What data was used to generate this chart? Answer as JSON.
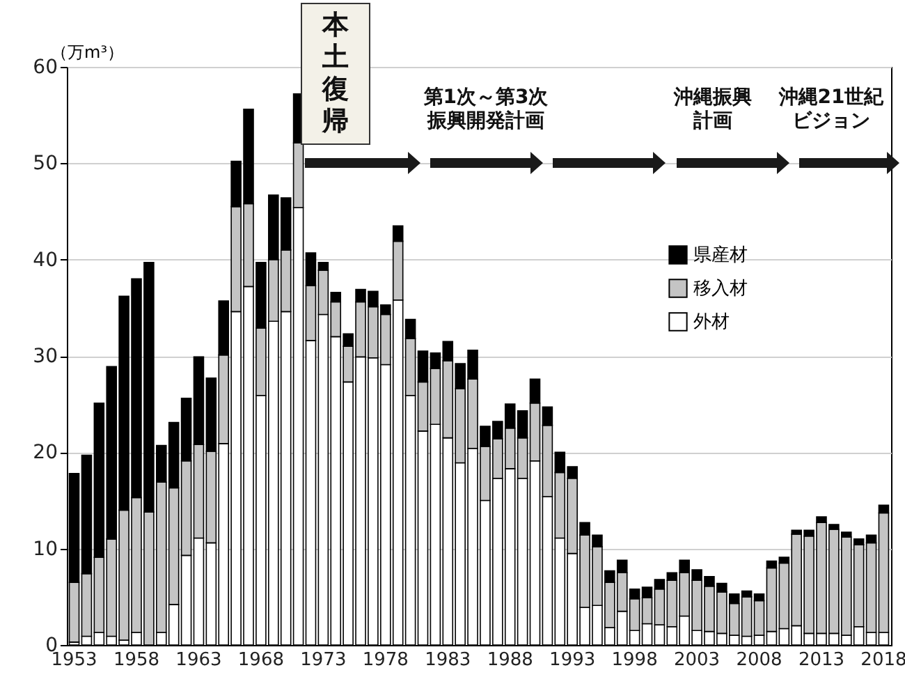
{
  "chart_data": {
    "type": "bar",
    "stacked": true,
    "ylabel": "（万m³）",
    "ylim": [
      0,
      60
    ],
    "yticks": [
      0,
      10,
      20,
      30,
      40,
      50,
      60
    ],
    "grid": "y",
    "legend": "right",
    "categories": [
      "1953",
      null,
      null,
      null,
      null,
      "1958",
      null,
      null,
      null,
      null,
      "1963",
      null,
      null,
      null,
      null,
      "1968",
      null,
      null,
      null,
      null,
      "1973",
      null,
      null,
      null,
      null,
      "1978",
      null,
      null,
      null,
      null,
      "1983",
      null,
      null,
      null,
      null,
      "1988",
      null,
      null,
      null,
      null,
      "1993",
      null,
      null,
      null,
      null,
      "1998",
      null,
      null,
      null,
      null,
      "2003",
      null,
      null,
      null,
      null,
      "2008",
      null,
      null,
      null,
      null,
      "2013",
      null,
      null,
      null,
      null,
      "2018"
    ],
    "annotations": [
      "本土復帰",
      "第1次～第3次振興開発計画",
      "沖縄振興計画",
      "沖縄21世紀ビジョン"
    ],
    "series": [
      {
        "name": "外材",
        "color": "#ffffff",
        "values": [
          0.3,
          0.9,
          1.3,
          0.9,
          0.5,
          1.3,
          null,
          1.3,
          4.2,
          9.3,
          11.1,
          10.6,
          20.9,
          34.6,
          37.2,
          25.9,
          33.6,
          34.6,
          45.4,
          31.6,
          34.3,
          32.0,
          27.3,
          29.9,
          29.8,
          29.1,
          35.8,
          25.9,
          22.2,
          22.9,
          21.5,
          18.9,
          20.4,
          15.0,
          17.3,
          18.3,
          17.3,
          19.1,
          15.4,
          11.1,
          9.5,
          3.9,
          4.1,
          1.8,
          3.5,
          1.5,
          2.2,
          2.1,
          1.9,
          3.0,
          1.5,
          1.4,
          1.2,
          1.0,
          0.9,
          1.0,
          1.4,
          1.7,
          2.0,
          1.2,
          1.2,
          1.2,
          1.0,
          1.9,
          1.3,
          1.3
        ]
      },
      {
        "name": "移入材",
        "color": "#c4c4c4",
        "values": [
          6.2,
          6.5,
          7.8,
          10.1,
          13.5,
          14.0,
          13.8,
          15.6,
          12.1,
          9.8,
          9.7,
          9.5,
          9.2,
          10.9,
          8.6,
          7.0,
          6.4,
          6.4,
          6.7,
          5.7,
          4.6,
          3.6,
          3.7,
          5.7,
          5.3,
          5.2,
          6.1,
          5.9,
          5.1,
          5.8,
          8.0,
          7.7,
          7.2,
          5.6,
          4.1,
          4.2,
          4.2,
          6.0,
          7.4,
          6.8,
          7.8,
          7.5,
          6.1,
          4.7,
          4.0,
          3.3,
          2.7,
          3.7,
          4.8,
          4.5,
          5.2,
          4.7,
          4.3,
          3.3,
          4.1,
          3.6,
          6.6,
          6.8,
          9.5,
          10.1,
          11.5,
          10.8,
          10.2,
          8.5,
          9.3,
          12.4
        ]
      },
      {
        "name": "県産材",
        "color": "#000000",
        "values": [
          11.3,
          12.3,
          16.0,
          17.9,
          22.2,
          22.7,
          25.9,
          3.8,
          6.8,
          6.5,
          9.1,
          7.6,
          5.6,
          4.7,
          9.8,
          6.8,
          6.7,
          5.4,
          5.1,
          3.4,
          0.8,
          1.0,
          1.3,
          1.3,
          1.6,
          1.0,
          1.6,
          2.0,
          3.2,
          1.6,
          2.0,
          2.6,
          3.0,
          2.1,
          1.8,
          2.5,
          2.8,
          2.5,
          1.9,
          2.1,
          1.2,
          1.3,
          1.2,
          1.2,
          1.3,
          1.0,
          1.1,
          1.0,
          0.8,
          1.3,
          1.1,
          1.0,
          0.9,
          1.0,
          0.6,
          0.7,
          0.7,
          0.6,
          0.4,
          0.6,
          0.6,
          0.5,
          0.5,
          0.6,
          0.8,
          0.8
        ]
      }
    ]
  }
}
